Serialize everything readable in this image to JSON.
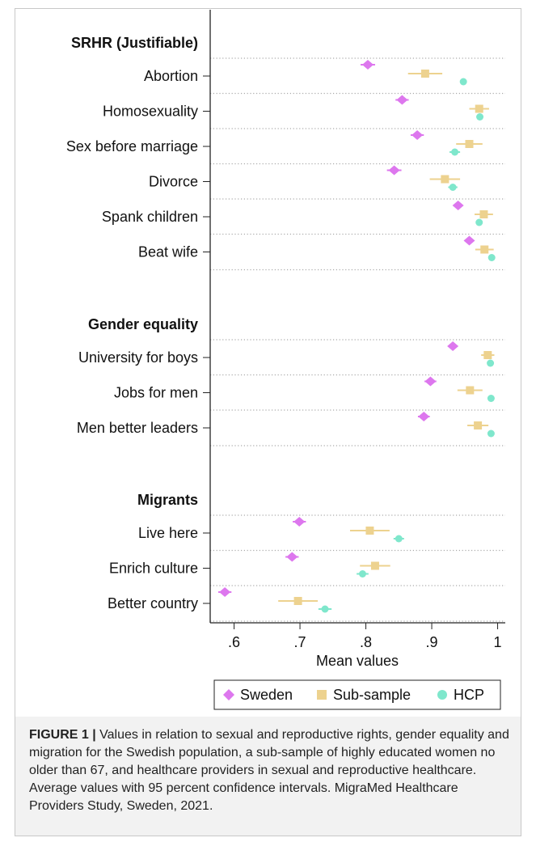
{
  "chart_data": {
    "type": "scatter",
    "xlabel": "Mean values",
    "xlim": [
      0.565,
      1.015
    ],
    "xticks": [
      0.6,
      0.7,
      0.8,
      0.9,
      1.0
    ],
    "xtick_labels": [
      ".6",
      ".7",
      ".8",
      ".9",
      "1"
    ],
    "gridlines": "dotted horizontal separators between items",
    "legend": "bottom",
    "series": [
      {
        "name": "Sweden",
        "marker": "diamond",
        "color": "#dd77ee"
      },
      {
        "name": "Sub-sample",
        "marker": "square",
        "color": "#edd28f"
      },
      {
        "name": "HCP",
        "marker": "circle",
        "color": "#7fe7cc"
      }
    ],
    "groups": [
      {
        "heading": "SRHR (Justifiable)",
        "items": [
          {
            "label": "Abortion",
            "Sweden": 0.803,
            "Sweden_ci": [
              0.792,
              0.814
            ],
            "Sub-sample": 0.89,
            "Sub-sample_ci": [
              0.864,
              0.916
            ],
            "HCP": 0.948,
            "HCP_ci": [
              0.943,
              0.953
            ]
          },
          {
            "label": "Homosexuality",
            "Sweden": 0.855,
            "Sweden_ci": [
              0.845,
              0.865
            ],
            "Sub-sample": 0.972,
            "Sub-sample_ci": [
              0.957,
              0.987
            ],
            "HCP": 0.973,
            "HCP_ci": [
              0.969,
              0.977
            ]
          },
          {
            "label": "Sex before marriage",
            "Sweden": 0.878,
            "Sweden_ci": [
              0.868,
              0.888
            ],
            "Sub-sample": 0.957,
            "Sub-sample_ci": [
              0.937,
              0.977
            ],
            "HCP": 0.935,
            "HCP_ci": [
              0.927,
              0.943
            ]
          },
          {
            "label": "Divorce",
            "Sweden": 0.843,
            "Sweden_ci": [
              0.832,
              0.854
            ],
            "Sub-sample": 0.92,
            "Sub-sample_ci": [
              0.897,
              0.943
            ],
            "HCP": 0.932,
            "HCP_ci": [
              0.925,
              0.939
            ]
          },
          {
            "label": "Spank children",
            "Sweden": 0.94,
            "Sweden_ci": [
              0.933,
              0.947
            ],
            "Sub-sample": 0.979,
            "Sub-sample_ci": [
              0.965,
              0.993
            ],
            "HCP": 0.972,
            "HCP_ci": [
              0.967,
              0.977
            ]
          },
          {
            "label": "Beat wife",
            "Sweden": 0.957,
            "Sweden_ci": [
              0.95,
              0.964
            ],
            "Sub-sample": 0.98,
            "Sub-sample_ci": [
              0.966,
              0.994
            ],
            "HCP": 0.991,
            "HCP_ci": [
              0.988,
              0.994
            ]
          }
        ]
      },
      {
        "heading": "Gender equality",
        "items": [
          {
            "label": "University for boys",
            "Sweden": 0.932,
            "Sweden_ci": [
              0.925,
              0.939
            ],
            "Sub-sample": 0.985,
            "Sub-sample_ci": [
              0.975,
              0.995
            ],
            "HCP": 0.989,
            "HCP_ci": [
              0.986,
              0.992
            ]
          },
          {
            "label": "Jobs for men",
            "Sweden": 0.898,
            "Sweden_ci": [
              0.889,
              0.907
            ],
            "Sub-sample": 0.958,
            "Sub-sample_ci": [
              0.939,
              0.977
            ],
            "HCP": 0.99,
            "HCP_ci": [
              0.987,
              0.993
            ]
          },
          {
            "label": "Men better leaders",
            "Sweden": 0.888,
            "Sweden_ci": [
              0.879,
              0.897
            ],
            "Sub-sample": 0.97,
            "Sub-sample_ci": [
              0.954,
              0.986
            ],
            "HCP": 0.99,
            "HCP_ci": [
              0.987,
              0.993
            ]
          }
        ]
      },
      {
        "heading": "Migrants",
        "items": [
          {
            "label": "Live here",
            "Sweden": 0.699,
            "Sweden_ci": [
              0.689,
              0.709
            ],
            "Sub-sample": 0.806,
            "Sub-sample_ci": [
              0.776,
              0.836
            ],
            "HCP": 0.85,
            "HCP_ci": [
              0.842,
              0.858
            ]
          },
          {
            "label": "Enrich culture",
            "Sweden": 0.688,
            "Sweden_ci": [
              0.678,
              0.698
            ],
            "Sub-sample": 0.814,
            "Sub-sample_ci": [
              0.791,
              0.837
            ],
            "HCP": 0.795,
            "HCP_ci": [
              0.786,
              0.804
            ]
          },
          {
            "label": "Better country",
            "Sweden": 0.586,
            "Sweden_ci": [
              0.576,
              0.596
            ],
            "Sub-sample": 0.697,
            "Sub-sample_ci": [
              0.667,
              0.727
            ],
            "HCP": 0.738,
            "HCP_ci": [
              0.728,
              0.748
            ]
          }
        ]
      }
    ]
  },
  "caption": {
    "label": "FIGURE 1 |",
    "text": " Values in relation to sexual and reproductive rights, gender equality and migration for the Swedish population, a sub-sample of highly educated women no older than 67, and healthcare providers in sexual and reproductive healthcare. Average values with 95 percent confidence intervals. MigraMed Healthcare Providers Study, Sweden, 2021."
  }
}
